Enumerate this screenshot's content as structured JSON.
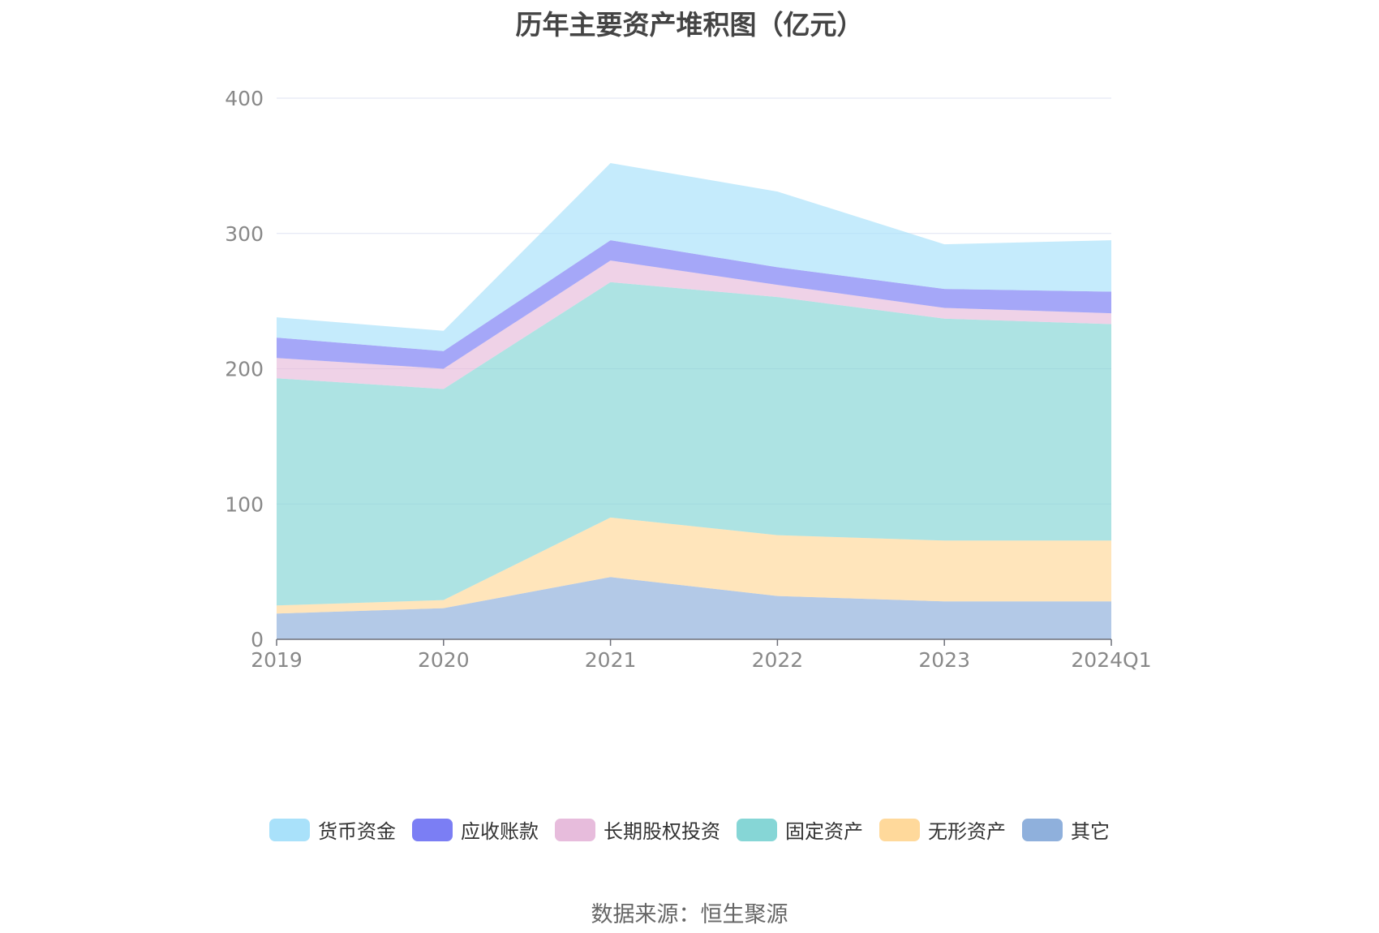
{
  "chart_data": {
    "type": "area",
    "stacked": true,
    "title": "历年主要资产堆积图（亿元）",
    "categories": [
      "2019",
      "2020",
      "2021",
      "2022",
      "2023",
      "2024Q1"
    ],
    "ylim": [
      0,
      400
    ],
    "yticks": [
      "0",
      "100",
      "200",
      "300",
      "400"
    ],
    "grid": true,
    "legend_position": "bottom",
    "series": [
      {
        "name": "其它",
        "color": "#8fb0dc",
        "values": [
          19,
          23,
          46,
          32,
          28,
          28
        ]
      },
      {
        "name": "无形资产",
        "color": "#ffd99b",
        "values": [
          6,
          6,
          44,
          45,
          45,
          45
        ]
      },
      {
        "name": "固定资产",
        "color": "#86d6d6",
        "values": [
          168,
          156,
          174,
          176,
          164,
          160
        ]
      },
      {
        "name": "长期股权投资",
        "color": "#e7bcdc",
        "values": [
          15,
          15,
          16,
          9,
          8,
          8
        ]
      },
      {
        "name": "应收账款",
        "color": "#7b7ef4",
        "values": [
          15,
          13,
          15,
          13,
          14,
          16
        ]
      },
      {
        "name": "货币资金",
        "color": "#a9e1fa",
        "values": [
          15,
          15,
          57,
          56,
          33,
          38
        ]
      }
    ]
  },
  "legend_order": [
    "货币资金",
    "应收账款",
    "长期股权投资",
    "固定资产",
    "无形资产",
    "其它"
  ],
  "source": "数据来源：恒生聚源"
}
